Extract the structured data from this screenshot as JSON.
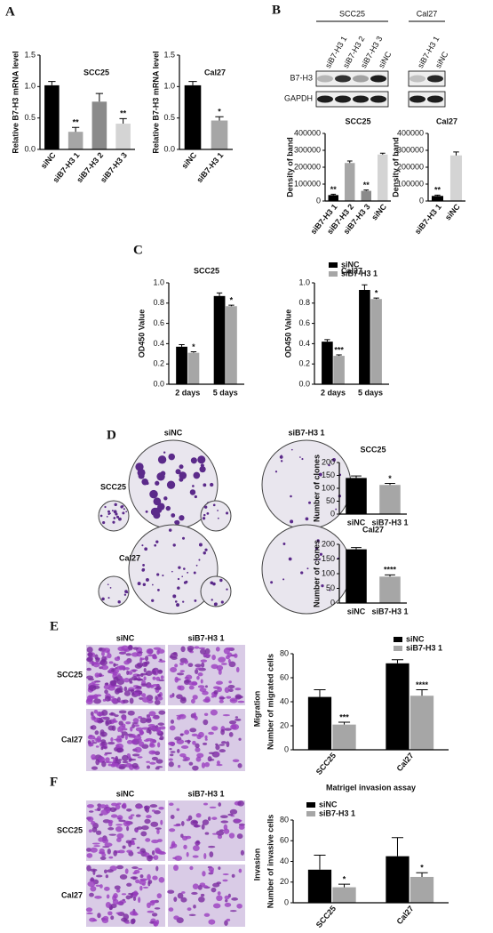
{
  "panel_labels": [
    "A",
    "B",
    "C",
    "D",
    "E",
    "F"
  ],
  "blot": {
    "groups": [
      {
        "name": "SCC25",
        "lanes": [
          "siB7-H3 1",
          "siB7-H3 2",
          "siB7-H3 3",
          "siNC"
        ]
      },
      {
        "name": "Cal27",
        "lanes": [
          "siB7-H3 1",
          "siNC"
        ]
      }
    ],
    "rows": [
      "B7-H3",
      "GAPDH"
    ]
  },
  "images": {
    "D": {
      "columns": [
        "siNC",
        "siB7-H3 1"
      ],
      "rows": [
        "SCC25",
        "Cal27"
      ]
    },
    "E": {
      "columns": [
        "siNC",
        "siB7-H3 1"
      ],
      "rows": [
        "SCC25",
        "Cal27"
      ],
      "side_label": "Migration"
    },
    "F": {
      "columns": [
        "siNC",
        "siB7-H3 1"
      ],
      "rows": [
        "SCC25",
        "Cal27"
      ],
      "side_label": "Invasion"
    }
  },
  "chart_data": [
    {
      "type": "bar",
      "title": "SCC25",
      "ylabel": "Relative B7-H3 mRNA level",
      "categories": [
        "siNC",
        "siB7-H3 1",
        "siB7-H3 2",
        "siB7-H3 3"
      ],
      "values": [
        1.02,
        0.28,
        0.76,
        0.41
      ],
      "errors": [
        0.06,
        0.07,
        0.13,
        0.08
      ],
      "colors": [
        "#000000",
        "#a6a6a6",
        "#8a8a8a",
        "#d4d4d4"
      ],
      "significance": [
        null,
        "**",
        null,
        "**"
      ],
      "ylim": [
        0,
        1.5
      ],
      "yticks": [
        {
          "value": 0,
          "label": "0.0"
        },
        {
          "value": 0.5,
          "label": "0.5"
        },
        {
          "value": 1,
          "label": "1.0"
        },
        {
          "value": 1.5,
          "label": "1.5"
        }
      ]
    },
    {
      "type": "bar",
      "title": "Cal27",
      "ylabel": "Relative B7-H3 mRNA level",
      "categories": [
        "siNC",
        "siB7-H3 1"
      ],
      "values": [
        1.02,
        0.46
      ],
      "errors": [
        0.06,
        0.06
      ],
      "colors": [
        "#000000",
        "#a6a6a6"
      ],
      "significance": [
        null,
        "*"
      ],
      "ylim": [
        0,
        1.5
      ],
      "yticks": [
        {
          "value": 0,
          "label": "0.0"
        },
        {
          "value": 0.5,
          "label": "0.5"
        },
        {
          "value": 1,
          "label": "1.0"
        },
        {
          "value": 1.5,
          "label": "1.5"
        }
      ]
    },
    {
      "type": "bar",
      "title": "SCC25",
      "ylabel": "Density of band",
      "categories": [
        "siB7-H3 1",
        "siB7-H3 2",
        "siB7-H3 3",
        "siNC"
      ],
      "values": [
        35000,
        225000,
        60000,
        275000
      ],
      "errors": [
        5000,
        12000,
        5000,
        8000
      ],
      "colors": [
        "#000000",
        "#a6a6a6",
        "#8a8a8a",
        "#d4d4d4"
      ],
      "significance": [
        "**",
        null,
        "**",
        null
      ],
      "ylim": [
        0,
        400000
      ],
      "yticks": [
        0,
        100000,
        200000,
        300000,
        400000
      ]
    },
    {
      "type": "bar",
      "title": "Cal27",
      "ylabel": "Density of band",
      "categories": [
        "siB7-H3 1",
        "siNC"
      ],
      "values": [
        30000,
        270000
      ],
      "errors": [
        5000,
        20000
      ],
      "colors": [
        "#000000",
        "#d4d4d4"
      ],
      "significance": [
        "**",
        null
      ],
      "ylim": [
        0,
        400000
      ],
      "yticks": [
        0,
        100000,
        200000,
        300000,
        400000
      ]
    },
    {
      "type": "grouped-bar",
      "title": "SCC25",
      "ylabel": "OD450 Value",
      "categories": [
        "2 days",
        "5 days"
      ],
      "series": [
        {
          "name": "siNC",
          "color": "#000000",
          "values": [
            0.37,
            0.87
          ],
          "errors": [
            0.02,
            0.03
          ],
          "significance": [
            null,
            null
          ]
        },
        {
          "name": "siB7-H3 1",
          "color": "#a6a6a6",
          "values": [
            0.31,
            0.77
          ],
          "errors": [
            0.01,
            0.01
          ],
          "significance": [
            "*",
            "*"
          ]
        }
      ],
      "ylim": [
        0,
        1
      ],
      "yticks": [
        {
          "value": 0,
          "label": "0.0"
        },
        {
          "value": 0.2,
          "label": "0.2"
        },
        {
          "value": 0.4,
          "label": "0.4"
        },
        {
          "value": 0.6,
          "label": "0.6"
        },
        {
          "value": 0.8,
          "label": "0.8"
        },
        {
          "value": 1,
          "label": "1.0"
        }
      ]
    },
    {
      "type": "grouped-bar",
      "title": "Cal27",
      "ylabel": "OD450 Value",
      "categories": [
        "2 days",
        "5 days"
      ],
      "series": [
        {
          "name": "siNC",
          "color": "#000000",
          "values": [
            0.42,
            0.93
          ],
          "errors": [
            0.02,
            0.05
          ],
          "significance": [
            null,
            null
          ]
        },
        {
          "name": "siB7-H3 1",
          "color": "#a6a6a6",
          "values": [
            0.28,
            0.84
          ],
          "errors": [
            0.01,
            0.01
          ],
          "significance": [
            "***",
            "*"
          ]
        }
      ],
      "ylim": [
        0,
        1
      ],
      "yticks": [
        {
          "value": 0,
          "label": "0.0"
        },
        {
          "value": 0.2,
          "label": "0.2"
        },
        {
          "value": 0.4,
          "label": "0.4"
        },
        {
          "value": 0.6,
          "label": "0.6"
        },
        {
          "value": 0.8,
          "label": "0.8"
        },
        {
          "value": 1,
          "label": "1.0"
        }
      ],
      "legend": "top-right"
    },
    {
      "type": "bar",
      "title": "SCC25",
      "ylabel": "Number of clones",
      "categories": [
        "siNC",
        "siB7-H3 1"
      ],
      "values": [
        140,
        113
      ],
      "errors": [
        8,
        6
      ],
      "colors": [
        "#000000",
        "#a6a6a6"
      ],
      "significance": [
        null,
        "*"
      ],
      "ylim": [
        0,
        200
      ],
      "yticks": [
        0,
        50,
        100,
        150,
        200
      ]
    },
    {
      "type": "bar",
      "title": "Cal27",
      "ylabel": "Number of clones",
      "categories": [
        "siNC",
        "siB7-H3 1"
      ],
      "values": [
        183,
        90
      ],
      "errors": [
        6,
        6
      ],
      "colors": [
        "#000000",
        "#a6a6a6"
      ],
      "significance": [
        null,
        "****"
      ],
      "ylim": [
        0,
        200
      ],
      "yticks": [
        0,
        50,
        100,
        150,
        200
      ]
    },
    {
      "type": "grouped-bar",
      "ylabel": "Number of migrated cells",
      "categories": [
        "SCC25",
        "Cal27"
      ],
      "series": [
        {
          "name": "siNC",
          "color": "#000000",
          "values": [
            44,
            72
          ],
          "errors": [
            6,
            3
          ],
          "significance": [
            null,
            null
          ]
        },
        {
          "name": "siB7-H3 1",
          "color": "#a6a6a6",
          "values": [
            21,
            45
          ],
          "errors": [
            2,
            5
          ],
          "significance": [
            "***",
            "****"
          ]
        }
      ],
      "ylim": [
        0,
        80
      ],
      "yticks": [
        0,
        20,
        40,
        60,
        80
      ],
      "legend": "top-right"
    },
    {
      "type": "grouped-bar",
      "title": "Matrigel invasion assay",
      "ylabel": "Number of invasive cells",
      "categories": [
        "SCC25",
        "Cal27"
      ],
      "series": [
        {
          "name": "siNC",
          "color": "#000000",
          "values": [
            32,
            45
          ],
          "errors": [
            14,
            18
          ],
          "significance": [
            null,
            null
          ]
        },
        {
          "name": "siB7-H3 1",
          "color": "#a6a6a6",
          "values": [
            15,
            25
          ],
          "errors": [
            3,
            4
          ],
          "significance": [
            "*",
            "*"
          ]
        }
      ],
      "ylim": [
        0,
        80
      ],
      "yticks": [
        0,
        20,
        40,
        60,
        80
      ],
      "legend": "top-left"
    }
  ]
}
